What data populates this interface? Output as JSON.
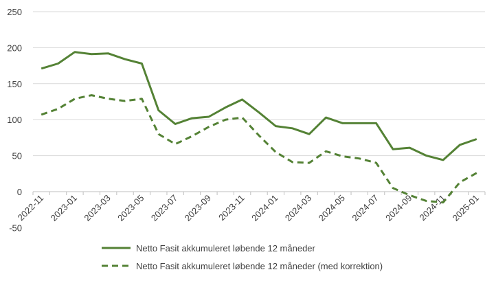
{
  "chart_data": {
    "type": "line",
    "title": "",
    "xlabel": "",
    "ylabel": "",
    "ylim": [
      -50,
      250
    ],
    "yticks": [
      250,
      200,
      150,
      100,
      50,
      0,
      -50
    ],
    "grid": true,
    "legend_position": "bottom",
    "x": [
      "2022-11",
      "2022-12",
      "2023-01",
      "2023-02",
      "2023-03",
      "2023-04",
      "2023-05",
      "2023-06",
      "2023-07",
      "2023-08",
      "2023-09",
      "2023-10",
      "2023-11",
      "2023-12",
      "2024-01",
      "2024-02",
      "2024-03",
      "2024-04",
      "2024-05",
      "2024-06",
      "2024-07",
      "2024-08",
      "2024-09",
      "2024-10",
      "2024-11",
      "2024-12",
      "2025-01"
    ],
    "x_tick_labels": [
      "2022-11",
      "2023-01",
      "2023-03",
      "2023-05",
      "2023-07",
      "2023-09",
      "2023-11",
      "2024-01",
      "2024-03",
      "2024-05",
      "2024-07",
      "2024-09",
      "2024-11",
      "2025-01"
    ],
    "series": [
      {
        "name": "Netto Fasit akkumuleret løbende 12 måneder",
        "style": "solid",
        "color": "#548235",
        "values": [
          171,
          178,
          194,
          191,
          192,
          184,
          178,
          113,
          94,
          102,
          104,
          117,
          128,
          110,
          91,
          88,
          80,
          103,
          95,
          95,
          95,
          59,
          61,
          50,
          44,
          65,
          73
        ]
      },
      {
        "name": "Netto Fasit akkumuleret løbende 12 måneder (med korrektion)",
        "style": "dashed",
        "color": "#548235",
        "values": [
          107,
          115,
          129,
          134,
          129,
          126,
          129,
          80,
          66,
          77,
          90,
          100,
          103,
          78,
          55,
          41,
          40,
          56,
          49,
          46,
          40,
          5,
          -5,
          -13,
          -15,
          13,
          26
        ]
      }
    ]
  }
}
